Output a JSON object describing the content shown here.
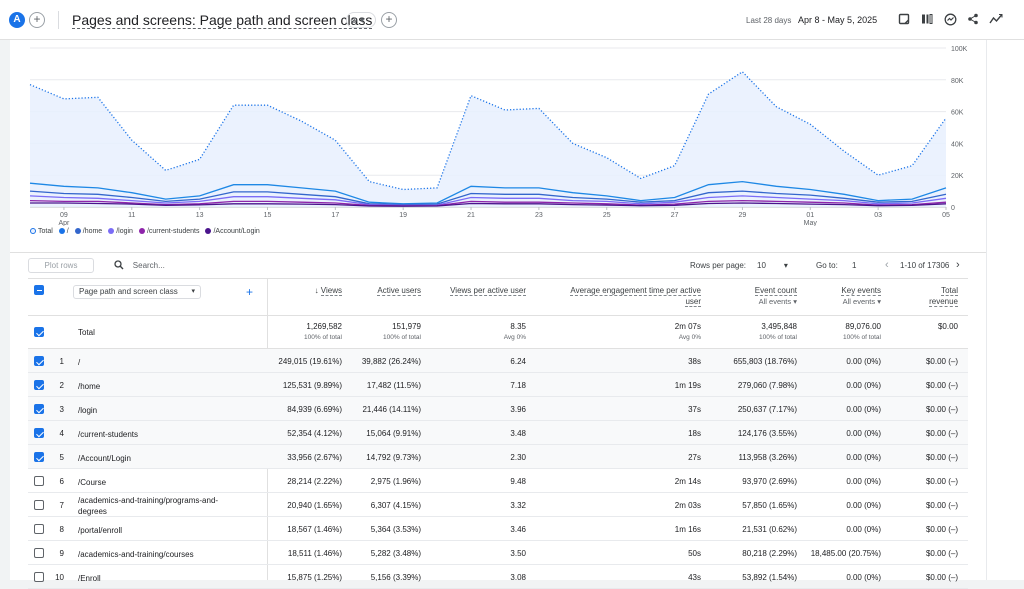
{
  "header": {
    "avatar_letter": "A",
    "add_symbol": "+",
    "title": "Pages and screens: Page path and screen class",
    "status_symbol": "⊘ ▾",
    "date_prefix": "Last 28 days",
    "date_range": "Apr 8 - May 5, 2025"
  },
  "colors": {
    "total": "#7baaf7",
    "root": "#1a73e8",
    "home": "#12369e",
    "login": "#7b6cf6",
    "current_students": "#5e35b1",
    "account_login": "#4a148c"
  },
  "chart_data": {
    "type": "line",
    "x": [
      "Apr 8",
      "Apr 9",
      "Apr 10",
      "Apr 11",
      "Apr 12",
      "Apr 13",
      "Apr 14",
      "Apr 15",
      "Apr 16",
      "Apr 17",
      "Apr 18",
      "Apr 19",
      "Apr 20",
      "Apr 21",
      "Apr 22",
      "Apr 23",
      "Apr 24",
      "Apr 25",
      "Apr 26",
      "Apr 27",
      "Apr 28",
      "Apr 29",
      "Apr 30",
      "May 1",
      "May 2",
      "May 3",
      "May 4",
      "May 5"
    ],
    "x_tick_labels": [
      {
        "day": "09",
        "month": "Apr",
        "index": 1
      },
      {
        "day": "11",
        "month": "",
        "index": 3
      },
      {
        "day": "13",
        "month": "",
        "index": 5
      },
      {
        "day": "15",
        "month": "",
        "index": 7
      },
      {
        "day": "17",
        "month": "",
        "index": 9
      },
      {
        "day": "19",
        "month": "",
        "index": 11
      },
      {
        "day": "21",
        "month": "",
        "index": 13
      },
      {
        "day": "23",
        "month": "",
        "index": 15
      },
      {
        "day": "25",
        "month": "",
        "index": 17
      },
      {
        "day": "27",
        "month": "",
        "index": 19
      },
      {
        "day": "29",
        "month": "",
        "index": 21
      },
      {
        "day": "01",
        "month": "May",
        "index": 23
      },
      {
        "day": "03",
        "month": "",
        "index": 25
      },
      {
        "day": "05",
        "month": "",
        "index": 27
      }
    ],
    "y_ticks": [
      "0",
      "20K",
      "40K",
      "60K",
      "80K",
      "100K"
    ],
    "ylim": [
      0,
      100000
    ],
    "series": [
      {
        "name": "Total",
        "style": "dotted-area",
        "values": [
          77000,
          68000,
          69000,
          42000,
          23000,
          30000,
          64000,
          64000,
          54000,
          42000,
          16000,
          11000,
          12000,
          70000,
          61000,
          62000,
          40000,
          31000,
          18000,
          26000,
          71000,
          85000,
          63000,
          52000,
          35000,
          20000,
          26000,
          56000
        ]
      },
      {
        "name": "/",
        "style": "solid",
        "values": [
          15000,
          13000,
          12000,
          9000,
          5000,
          7000,
          14000,
          14000,
          12000,
          10000,
          3000,
          2000,
          2500,
          13000,
          12000,
          12000,
          9000,
          7000,
          4000,
          6000,
          14000,
          16000,
          13000,
          11000,
          8000,
          4000,
          5000,
          12000
        ]
      },
      {
        "name": "/home",
        "style": "solid",
        "values": [
          10000,
          8500,
          8000,
          6000,
          3500,
          5000,
          9500,
          9500,
          8000,
          6500,
          2000,
          1500,
          1800,
          8500,
          8000,
          8000,
          6000,
          5000,
          3000,
          4000,
          9000,
          10000,
          8500,
          7500,
          5500,
          3000,
          3500,
          8000
        ]
      },
      {
        "name": "/login",
        "style": "solid",
        "values": [
          7000,
          6000,
          5500,
          4000,
          2500,
          3500,
          6500,
          6500,
          5500,
          4500,
          1500,
          1000,
          1200,
          6000,
          5500,
          5500,
          4000,
          3500,
          2000,
          3000,
          6000,
          7000,
          6000,
          5000,
          4000,
          2000,
          2500,
          5500
        ]
      },
      {
        "name": "/current-students",
        "style": "solid",
        "values": [
          4000,
          3500,
          3500,
          2500,
          1500,
          2000,
          3500,
          3500,
          3000,
          2500,
          1000,
          700,
          800,
          3500,
          3000,
          3000,
          2500,
          2000,
          1200,
          1800,
          3500,
          4000,
          3500,
          3000,
          2500,
          1200,
          1500,
          3000
        ]
      },
      {
        "name": "/Account/Login",
        "style": "solid",
        "values": [
          2500,
          2500,
          2200,
          1800,
          1000,
          1300,
          2000,
          2000,
          1800,
          1500,
          600,
          500,
          600,
          2200,
          2000,
          2000,
          1500,
          1200,
          800,
          1100,
          2200,
          2500,
          2200,
          1800,
          1500,
          800,
          1000,
          2000
        ]
      }
    ]
  },
  "table_toolbar": {
    "plot_rows": "Plot rows",
    "search_placeholder": "Search...",
    "rows_per_page_label": "Rows per page:",
    "rows_per_page": "10",
    "goto_label": "Go to:",
    "goto_value": "1",
    "pagination": "1-10 of 17306"
  },
  "table": {
    "dimension": "Page path and screen class",
    "columns": [
      {
        "label": "Views",
        "sub": ""
      },
      {
        "label": "Active users",
        "sub": ""
      },
      {
        "label": "Views per active user",
        "sub": ""
      },
      {
        "label": "Average engagement time per active user",
        "sub": ""
      },
      {
        "label": "Event count",
        "sub": "All events"
      },
      {
        "label": "Key events",
        "sub": "All events"
      },
      {
        "label": "Total revenue",
        "sub": ""
      }
    ],
    "total": {
      "label": "Total",
      "values": [
        "1,269,582",
        "151,979",
        "8.35",
        "2m 07s",
        "3,495,848",
        "89,076.00",
        "$0.00"
      ],
      "subs": [
        "100% of total",
        "100% of total",
        "Avg 0%",
        "Avg 0%",
        "100% of total",
        "100% of total",
        ""
      ]
    },
    "rows": [
      {
        "n": "1",
        "path": "/",
        "checked": true,
        "values": [
          "249,015 (19.61%)",
          "39,882 (26.24%)",
          "6.24",
          "38s",
          "655,803 (18.76%)",
          "0.00 (0%)",
          "$0.00 (–)"
        ]
      },
      {
        "n": "2",
        "path": "/home",
        "checked": true,
        "values": [
          "125,531 (9.89%)",
          "17,482 (11.5%)",
          "7.18",
          "1m 19s",
          "279,060 (7.98%)",
          "0.00 (0%)",
          "$0.00 (–)"
        ]
      },
      {
        "n": "3",
        "path": "/login",
        "checked": true,
        "values": [
          "84,939 (6.69%)",
          "21,446 (14.11%)",
          "3.96",
          "37s",
          "250,637 (7.17%)",
          "0.00 (0%)",
          "$0.00 (–)"
        ]
      },
      {
        "n": "4",
        "path": "/current-students",
        "checked": true,
        "values": [
          "52,354 (4.12%)",
          "15,064 (9.91%)",
          "3.48",
          "18s",
          "124,176 (3.55%)",
          "0.00 (0%)",
          "$0.00 (–)"
        ]
      },
      {
        "n": "5",
        "path": "/Account/Login",
        "checked": true,
        "values": [
          "33,956 (2.67%)",
          "14,792 (9.73%)",
          "2.30",
          "27s",
          "113,958 (3.26%)",
          "0.00 (0%)",
          "$0.00 (–)"
        ]
      },
      {
        "n": "6",
        "path": "/Course",
        "checked": false,
        "values": [
          "28,214 (2.22%)",
          "2,975 (1.96%)",
          "9.48",
          "2m 14s",
          "93,970 (2.69%)",
          "0.00 (0%)",
          "$0.00 (–)"
        ]
      },
      {
        "n": "7",
        "path": "/academics-and-training/programs-and-",
        "path2": "degrees",
        "checked": false,
        "values": [
          "20,940 (1.65%)",
          "6,307 (4.15%)",
          "3.32",
          "2m 03s",
          "57,850 (1.65%)",
          "0.00 (0%)",
          "$0.00 (–)"
        ]
      },
      {
        "n": "8",
        "path": "/portal/enroll",
        "checked": false,
        "values": [
          "18,567 (1.46%)",
          "5,364 (3.53%)",
          "3.46",
          "1m 16s",
          "21,531 (0.62%)",
          "0.00 (0%)",
          "$0.00 (–)"
        ]
      },
      {
        "n": "9",
        "path": "/academics-and-training/courses",
        "checked": false,
        "values": [
          "18,511 (1.46%)",
          "5,282 (3.48%)",
          "3.50",
          "50s",
          "80,218 (2.29%)",
          "18,485.00 (20.75%)",
          "$0.00 (–)"
        ]
      },
      {
        "n": "10",
        "path": "/Enroll",
        "checked": false,
        "values": [
          "15,875 (1.25%)",
          "5,156 (3.39%)",
          "3.08",
          "43s",
          "53,892 (1.54%)",
          "0.00 (0%)",
          "$0.00 (–)"
        ]
      }
    ]
  }
}
